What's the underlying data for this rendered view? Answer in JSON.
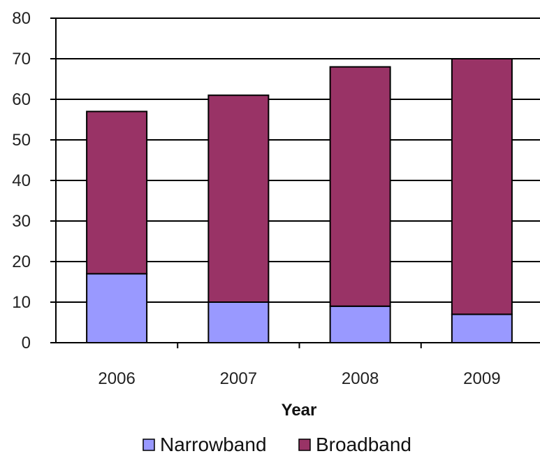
{
  "chart_data": {
    "type": "bar",
    "stacked": true,
    "categories": [
      "2006",
      "2007",
      "2008",
      "2009"
    ],
    "series": [
      {
        "name": "Narrowband",
        "values": [
          17,
          10,
          9,
          7
        ],
        "color": "#9999ff"
      },
      {
        "name": "Broadband",
        "values": [
          40,
          51,
          59,
          63
        ],
        "color": "#993366"
      }
    ],
    "xlabel": "Year",
    "ylabel": "",
    "ylim": [
      0,
      80
    ],
    "yticks": [
      "0",
      "10",
      "20",
      "30",
      "40",
      "50",
      "60",
      "70",
      "80"
    ],
    "grid": true,
    "legend": "bottom"
  }
}
